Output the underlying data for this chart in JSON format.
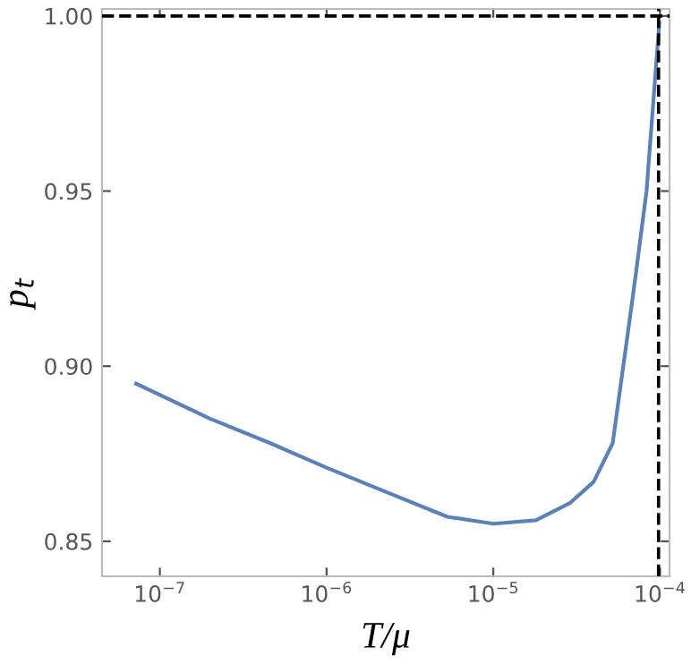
{
  "chart_data": {
    "type": "line",
    "xlabel": "T/μ",
    "ylabel": "p$_{t}$",
    "log": "x",
    "x": [
      7.2e-08,
      2e-07,
      4.6e-07,
      1e-06,
      2.3e-06,
      5.3e-06,
      1e-05,
      1.8e-05,
      2.9e-05,
      4e-05,
      5.2e-05,
      6.1e-05,
      7.1e-05,
      8.3e-05,
      9.9e-05
    ],
    "series": [
      {
        "color": "#5e81b5",
        "values": [
          0.895,
          0.885,
          0.878,
          0.871,
          0.864,
          0.857,
          0.855,
          0.856,
          0.861,
          0.867,
          0.878,
          0.902,
          0.925,
          0.95,
          0.998
        ]
      }
    ],
    "xlim": [
      4.5e-08,
      0.000114
    ],
    "ylim": [
      0.84,
      1.002
    ],
    "xticks": [
      {
        "value": 1e-07,
        "label": "10$^{−7}$"
      },
      {
        "value": 1e-06,
        "label": "10$^{−6}$"
      },
      {
        "value": 1e-05,
        "label": "10$^{−5}$"
      },
      {
        "value": 0.0001,
        "label": "10$^{−4}$"
      }
    ],
    "yticks": [
      {
        "value": 0.85,
        "label": "0.85"
      },
      {
        "value": 0.9,
        "label": "0.90"
      },
      {
        "value": 0.95,
        "label": "0.95"
      },
      {
        "value": 1.0,
        "label": "1.00"
      }
    ],
    "ref_lines": [
      {
        "axis": "y",
        "value": 1.0,
        "color": "#000000",
        "line_style": "dashed"
      },
      {
        "axis": "x",
        "value": 9.8e-05,
        "color": "#000000",
        "line_style": "dashed"
      }
    ],
    "grid": false,
    "legend": false,
    "marker": "none",
    "line_style": "solid"
  }
}
